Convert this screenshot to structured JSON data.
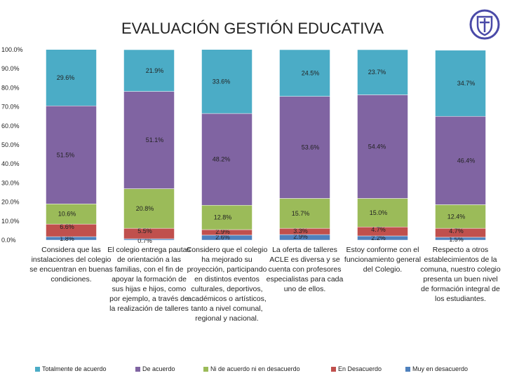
{
  "chart_data": {
    "type": "bar",
    "stacked": true,
    "title": "EVALUACIÓN GESTIÓN EDUCATIVA",
    "ylim": [
      0,
      100
    ],
    "y_ticks": [
      "0.0%",
      "10.0%",
      "20.0%",
      "30.0%",
      "40.0%",
      "50.0%",
      "60.0%",
      "70.0%",
      "80.0%",
      "90.0%",
      "100.0%"
    ],
    "categories": [
      "Considera que las instalaciones del colegio se encuentran en buenas condiciones.",
      "El colegio entrega pautas de orientación a las familias, con el fin de apoyar la formación de sus hijas e hijos, como por ejemplo, a través de la realización de talleres",
      "Considero que el colegio ha mejorado su proyección, participando en distintos eventos culturales, deportivos, académicos o artísticos, tanto a nivel comunal, regional y nacional.",
      "La oferta de talleres ACLE es diversa y se cuenta con profesores especialistas para cada uno de ellos.",
      "Estoy conforme con el funcionamiento general del Colegio.",
      "Respecto a otros establecimientos de la comuna, nuestro colegio presenta un buen nivel de formación integral de los estudiantes."
    ],
    "series": [
      {
        "name": "Muy en desacuerdo",
        "color": "#4f81bd",
        "values": [
          1.8,
          0.7,
          2.6,
          2.9,
          2.2,
          1.5
        ],
        "labels": [
          "1.8%",
          "0.7%",
          "2.6%",
          "2.9%",
          "2.2%",
          "1.5%"
        ]
      },
      {
        "name": "En Desacuerdo",
        "color": "#c0504d",
        "values": [
          6.6,
          5.5,
          2.9,
          3.3,
          4.7,
          4.7
        ],
        "labels": [
          "6.6%",
          "5.5%",
          "2.9%",
          "3.3%",
          "4.7%",
          "4.7%"
        ]
      },
      {
        "name": "Ni de acuerdo ni en desacuerdo",
        "color": "#9bbb59",
        "values": [
          10.6,
          20.8,
          12.8,
          15.7,
          15.0,
          12.4
        ],
        "labels": [
          "10.6%",
          "20.8%",
          "12.8%",
          "15.7%",
          "15.0%",
          "12.4%"
        ]
      },
      {
        "name": "De acuerdo",
        "color": "#8064a2",
        "values": [
          51.5,
          51.1,
          48.2,
          53.6,
          54.4,
          46.4
        ],
        "labels": [
          "51.5%",
          "51.1%",
          "48.2%",
          "53.6%",
          "54.4%",
          "46.4%"
        ]
      },
      {
        "name": "Totalmente de acuerdo",
        "color": "#4bacc6",
        "values": [
          29.6,
          21.9,
          33.6,
          24.5,
          23.7,
          34.7
        ],
        "labels": [
          "29.6%",
          "21.9%",
          "33.6%",
          "24.5%",
          "23.7%",
          "34.7%"
        ]
      }
    ],
    "legend_order": [
      "Totalmente de acuerdo",
      "De acuerdo",
      "Ni de acuerdo ni en desacuerdo",
      "En Desacuerdo",
      "Muy en desacuerdo"
    ],
    "legend_position": "bottom"
  }
}
